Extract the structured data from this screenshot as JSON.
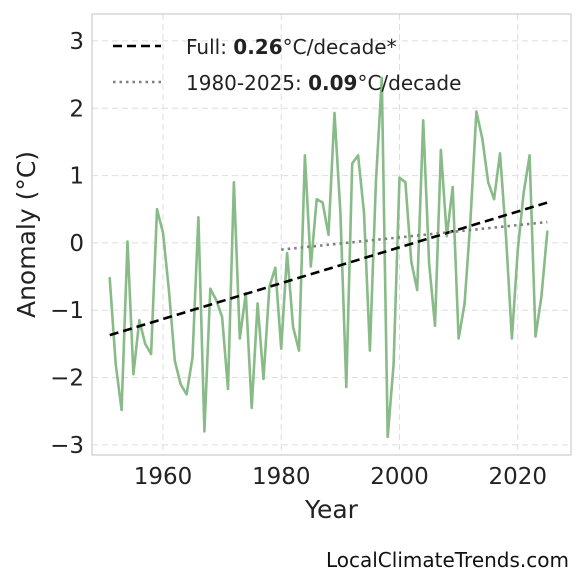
{
  "chart_data": {
    "type": "line",
    "title": "",
    "xlabel": "Year",
    "ylabel": "Anomaly (°C)",
    "xlim": [
      1948,
      2029
    ],
    "ylim": [
      -3.15,
      3.4
    ],
    "xticks": [
      1960,
      1980,
      2000,
      2020
    ],
    "yticks": [
      -3,
      -2,
      -1,
      0,
      1,
      2,
      3
    ],
    "grid": true,
    "legend_position": "top-left",
    "x": [
      1951,
      1952,
      1953,
      1954,
      1955,
      1956,
      1957,
      1958,
      1959,
      1960,
      1961,
      1962,
      1963,
      1964,
      1965,
      1966,
      1967,
      1968,
      1969,
      1970,
      1971,
      1972,
      1973,
      1974,
      1975,
      1976,
      1977,
      1978,
      1979,
      1980,
      1981,
      1982,
      1983,
      1984,
      1985,
      1986,
      1987,
      1988,
      1989,
      1990,
      1991,
      1992,
      1993,
      1994,
      1995,
      1996,
      1997,
      1998,
      1999,
      2000,
      2001,
      2002,
      2003,
      2004,
      2005,
      2006,
      2007,
      2008,
      2009,
      2010,
      2011,
      2012,
      2013,
      2014,
      2015,
      2016,
      2017,
      2018,
      2019,
      2020,
      2021,
      2022,
      2023,
      2024,
      2025
    ],
    "series": [
      {
        "color": "#88bb88",
        "values": [
          -0.52,
          -1.8,
          -2.48,
          0.02,
          -1.95,
          -1.15,
          -1.5,
          -1.65,
          0.5,
          0.15,
          -0.7,
          -1.75,
          -2.1,
          -2.25,
          -1.7,
          0.38,
          -2.8,
          -0.68,
          -0.85,
          -1.1,
          -2.17,
          0.9,
          -1.42,
          -0.75,
          -2.45,
          -0.9,
          -2.02,
          -0.65,
          -0.37,
          -1.57,
          -0.15,
          -1.25,
          -1.6,
          1.3,
          -0.35,
          0.65,
          0.6,
          0.12,
          1.93,
          0.45,
          -2.14,
          1.18,
          1.3,
          0.45,
          -1.6,
          0.9,
          2.45,
          -2.88,
          -1.8,
          0.97,
          0.9,
          -0.28,
          -0.7,
          1.82,
          -0.3,
          -1.23,
          1.38,
          0.1,
          0.83,
          -1.42,
          -0.9,
          0.35,
          1.95,
          1.55,
          0.9,
          0.65,
          1.33,
          0.1,
          -1.42,
          -0.1,
          0.75,
          1.3,
          -1.39,
          -0.8,
          0.17
        ]
      }
    ],
    "trends": [
      {
        "style": "dashed",
        "color": "#000000",
        "x": [
          1951,
          2025
        ],
        "y": [
          -1.37,
          0.6
        ],
        "legend_prefix": "Full: ",
        "legend_value": "0.26",
        "legend_suffix": "°C/decade*"
      },
      {
        "style": "dotted",
        "color": "#808080",
        "x": [
          1980,
          2025
        ],
        "y": [
          -0.1,
          0.31
        ],
        "legend_prefix": "1980-2025: ",
        "legend_value": "0.09",
        "legend_suffix": "°C/decade"
      }
    ]
  },
  "watermark": "LocalClimateTrends.com"
}
